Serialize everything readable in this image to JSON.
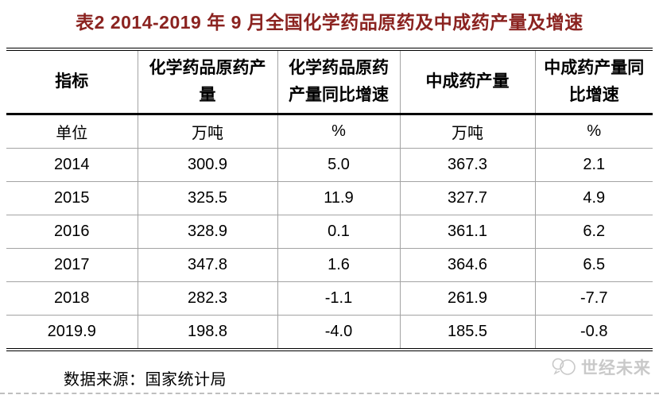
{
  "title": "表2 2014-2019 年 9 月全国化学药品原药及中成药产量及增速",
  "colors": {
    "title_text": "#8b2320",
    "grid_line": "#a3a3a3",
    "heavy_line": "#000000",
    "watermark": "#c9c9c9",
    "background": "#ffffff"
  },
  "table": {
    "columns": [
      "指标",
      "化学药品原药产\n量",
      "化学药品原药\n产量同比增速",
      "中成药产量",
      "中成药产量同\n比增速"
    ],
    "unit_row": [
      "单位",
      "万吨",
      "%",
      "万吨",
      "%"
    ],
    "rows": [
      [
        "2014",
        "300.9",
        "5.0",
        "367.3",
        "2.1"
      ],
      [
        "2015",
        "325.5",
        "11.9",
        "327.7",
        "4.9"
      ],
      [
        "2016",
        "328.9",
        "0.1",
        "361.1",
        "6.2"
      ],
      [
        "2017",
        "347.8",
        "1.6",
        "364.6",
        "6.5"
      ],
      [
        "2018",
        "282.3",
        "-1.1",
        "261.9",
        "-7.7"
      ],
      [
        "2019.9",
        "198.8",
        "-4.0",
        "185.5",
        "-0.8"
      ]
    ]
  },
  "footer": {
    "source": "数据来源：国家统计局",
    "watermark_text": "世经未来"
  }
}
